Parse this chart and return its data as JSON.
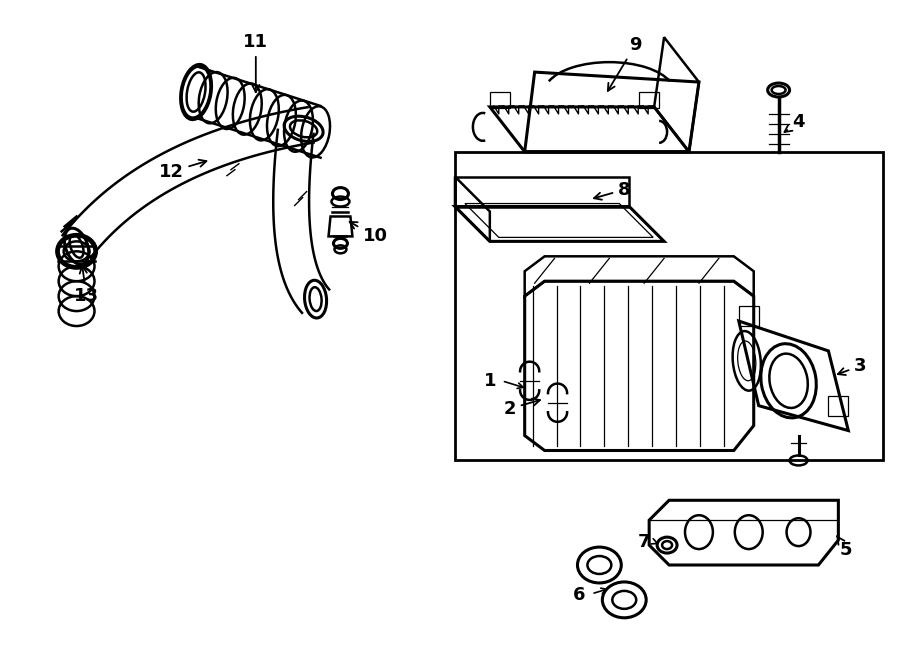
{
  "bg_color": "#ffffff",
  "line_color": "#000000",
  "fig_width": 9.0,
  "fig_height": 6.61,
  "dpi": 100,
  "label_fontsize": 13,
  "lw_main": 1.8,
  "lw_thick": 2.2,
  "lw_thin": 0.9
}
